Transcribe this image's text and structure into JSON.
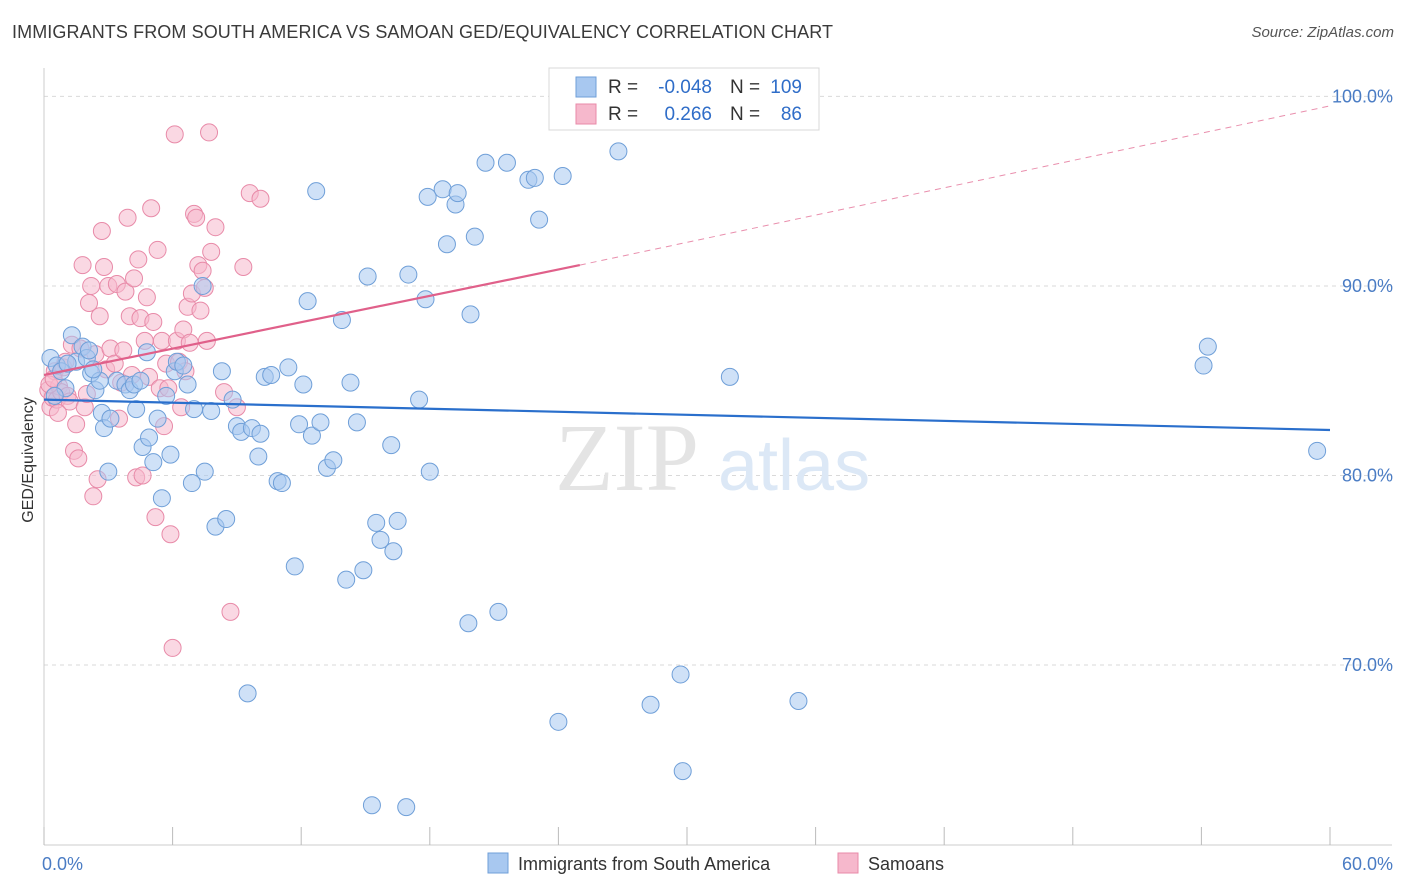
{
  "title": "IMMIGRANTS FROM SOUTH AMERICA VS SAMOAN GED/EQUIVALENCY CORRELATION CHART",
  "source": "Source: ZipAtlas.com",
  "watermark": {
    "zip": "ZIP",
    "atlas": "atlas"
  },
  "colors": {
    "blue_fill": "#a8c8f0",
    "blue_stroke": "#6f9fd8",
    "blue_line": "#2a6fcc",
    "pink_fill": "#f6b8cc",
    "pink_stroke": "#e88aa8",
    "pink_line": "#e0608a",
    "grid": "#d9d9d9",
    "tick_text": "#4a7cc4"
  },
  "legend": {
    "rows": [
      {
        "r_label": "R =",
        "r_value": "-0.048",
        "n_label": "N =",
        "n_value": "109"
      },
      {
        "r_label": "R =",
        "r_value": "0.266",
        "n_label": "N =",
        "n_value": "86"
      }
    ]
  },
  "bottom_legend": [
    "Immigrants from South America",
    "Samoans"
  ],
  "chart_data": {
    "type": "scatter",
    "ylabel": "GED/Equivalency",
    "xlim": [
      0,
      60
    ],
    "ylim": [
      60.5,
      101.5
    ],
    "x_tick_labels": [
      "0.0%",
      "60.0%"
    ],
    "y_ticks": [
      70,
      80,
      90,
      100
    ],
    "y_tick_labels": [
      "70.0%",
      "80.0%",
      "90.0%",
      "100.0%"
    ],
    "grid": true,
    "legend_position": "top-center",
    "series": [
      {
        "name": "Immigrants from South America",
        "trend": {
          "x0": 0,
          "y0": 84.0,
          "x1": 60,
          "y1": 82.4
        },
        "points": [
          [
            0.3,
            86.2
          ],
          [
            0.6,
            85.8
          ],
          [
            0.8,
            85.5
          ],
          [
            1.0,
            84.6
          ],
          [
            1.3,
            87.4
          ],
          [
            1.5,
            86.0
          ],
          [
            1.8,
            86.8
          ],
          [
            2.0,
            86.2
          ],
          [
            2.2,
            85.4
          ],
          [
            2.4,
            84.5
          ],
          [
            2.6,
            85.0
          ],
          [
            2.7,
            83.3
          ],
          [
            2.8,
            82.5
          ],
          [
            3.0,
            80.2
          ],
          [
            3.1,
            83.0
          ],
          [
            3.4,
            85.0
          ],
          [
            3.8,
            84.8
          ],
          [
            4.0,
            84.5
          ],
          [
            4.2,
            84.8
          ],
          [
            4.3,
            83.5
          ],
          [
            4.5,
            85.0
          ],
          [
            4.6,
            81.5
          ],
          [
            4.8,
            86.5
          ],
          [
            4.9,
            82.0
          ],
          [
            5.1,
            80.7
          ],
          [
            5.3,
            83.0
          ],
          [
            5.5,
            78.8
          ],
          [
            5.7,
            84.2
          ],
          [
            5.9,
            81.1
          ],
          [
            6.1,
            85.5
          ],
          [
            6.2,
            86.0
          ],
          [
            6.5,
            85.8
          ],
          [
            6.7,
            84.8
          ],
          [
            6.9,
            79.6
          ],
          [
            7.0,
            83.5
          ],
          [
            7.4,
            90.0
          ],
          [
            7.5,
            80.2
          ],
          [
            7.8,
            83.4
          ],
          [
            8.0,
            77.3
          ],
          [
            8.3,
            85.5
          ],
          [
            8.5,
            77.7
          ],
          [
            8.8,
            84.0
          ],
          [
            9.0,
            82.6
          ],
          [
            9.2,
            82.3
          ],
          [
            9.5,
            68.5
          ],
          [
            9.7,
            82.5
          ],
          [
            10.0,
            81.0
          ],
          [
            10.1,
            82.2
          ],
          [
            10.3,
            85.2
          ],
          [
            10.6,
            85.3
          ],
          [
            10.9,
            79.7
          ],
          [
            11.1,
            79.6
          ],
          [
            11.4,
            85.7
          ],
          [
            11.7,
            75.2
          ],
          [
            11.9,
            82.7
          ],
          [
            12.1,
            84.8
          ],
          [
            12.3,
            89.2
          ],
          [
            12.5,
            82.1
          ],
          [
            12.7,
            95.0
          ],
          [
            12.9,
            82.8
          ],
          [
            13.2,
            80.4
          ],
          [
            13.5,
            80.8
          ],
          [
            13.9,
            88.2
          ],
          [
            14.1,
            74.5
          ],
          [
            14.3,
            84.9
          ],
          [
            14.6,
            82.8
          ],
          [
            14.9,
            75.0
          ],
          [
            15.1,
            90.5
          ],
          [
            15.3,
            62.6
          ],
          [
            15.5,
            77.5
          ],
          [
            15.7,
            76.6
          ],
          [
            16.2,
            81.6
          ],
          [
            16.3,
            76.0
          ],
          [
            16.5,
            77.6
          ],
          [
            16.9,
            62.5
          ],
          [
            17.0,
            90.6
          ],
          [
            17.5,
            84.0
          ],
          [
            17.8,
            89.3
          ],
          [
            17.9,
            94.7
          ],
          [
            18.0,
            80.2
          ],
          [
            18.6,
            95.1
          ],
          [
            18.8,
            92.2
          ],
          [
            19.2,
            94.3
          ],
          [
            19.3,
            94.9
          ],
          [
            19.8,
            72.2
          ],
          [
            19.9,
            88.5
          ],
          [
            20.1,
            92.6
          ],
          [
            20.6,
            96.5
          ],
          [
            21.2,
            72.8
          ],
          [
            21.6,
            96.5
          ],
          [
            22.6,
            95.6
          ],
          [
            22.9,
            95.7
          ],
          [
            23.1,
            93.5
          ],
          [
            24.0,
            67.0
          ],
          [
            24.2,
            95.8
          ],
          [
            25.6,
            100.0
          ],
          [
            26.8,
            97.1
          ],
          [
            28.3,
            67.9
          ],
          [
            29.7,
            69.5
          ],
          [
            29.8,
            64.4
          ],
          [
            32.0,
            85.2
          ],
          [
            35.2,
            68.1
          ],
          [
            54.3,
            86.8
          ],
          [
            54.1,
            85.8
          ],
          [
            59.4,
            81.3
          ],
          [
            0.5,
            84.2
          ],
          [
            1.1,
            85.9
          ],
          [
            2.1,
            86.6
          ],
          [
            2.3,
            85.6
          ]
        ]
      },
      {
        "name": "Samoans",
        "trend": {
          "x0": 0,
          "y0": 85.3,
          "x1": 25,
          "y1": 91.1,
          "x2": 60,
          "y2": 99.5
        },
        "points": [
          [
            0.2,
            84.5
          ],
          [
            0.3,
            83.6
          ],
          [
            0.4,
            84.1
          ],
          [
            0.5,
            85.5
          ],
          [
            0.6,
            84.0
          ],
          [
            0.7,
            84.7
          ],
          [
            0.8,
            84.4
          ],
          [
            0.9,
            85.7
          ],
          [
            1.0,
            86.0
          ],
          [
            1.1,
            84.2
          ],
          [
            1.2,
            83.9
          ],
          [
            1.3,
            86.9
          ],
          [
            1.4,
            81.3
          ],
          [
            1.5,
            82.7
          ],
          [
            1.6,
            80.9
          ],
          [
            1.7,
            86.7
          ],
          [
            1.8,
            91.1
          ],
          [
            1.9,
            83.6
          ],
          [
            2.0,
            84.3
          ],
          [
            2.1,
            89.1
          ],
          [
            2.2,
            90.0
          ],
          [
            2.3,
            78.9
          ],
          [
            2.4,
            86.4
          ],
          [
            2.5,
            79.8
          ],
          [
            2.6,
            88.4
          ],
          [
            2.7,
            92.9
          ],
          [
            2.8,
            91.0
          ],
          [
            2.9,
            85.6
          ],
          [
            3.0,
            90.0
          ],
          [
            3.1,
            86.7
          ],
          [
            3.3,
            85.9
          ],
          [
            3.4,
            90.1
          ],
          [
            3.5,
            83.0
          ],
          [
            3.6,
            84.9
          ],
          [
            3.7,
            86.6
          ],
          [
            3.8,
            89.7
          ],
          [
            3.9,
            93.6
          ],
          [
            4.0,
            88.4
          ],
          [
            4.1,
            85.3
          ],
          [
            4.2,
            90.4
          ],
          [
            4.3,
            79.9
          ],
          [
            4.4,
            91.4
          ],
          [
            4.5,
            88.3
          ],
          [
            4.6,
            80.0
          ],
          [
            4.7,
            87.1
          ],
          [
            4.8,
            89.4
          ],
          [
            4.9,
            85.2
          ],
          [
            5.0,
            94.1
          ],
          [
            5.1,
            88.1
          ],
          [
            5.2,
            77.8
          ],
          [
            5.3,
            91.9
          ],
          [
            5.4,
            84.6
          ],
          [
            5.5,
            87.1
          ],
          [
            5.6,
            82.6
          ],
          [
            5.7,
            85.9
          ],
          [
            5.8,
            84.6
          ],
          [
            5.9,
            76.9
          ],
          [
            6.0,
            70.9
          ],
          [
            6.1,
            98.0
          ],
          [
            6.2,
            87.1
          ],
          [
            6.3,
            86.0
          ],
          [
            6.4,
            83.6
          ],
          [
            6.5,
            87.7
          ],
          [
            6.6,
            85.5
          ],
          [
            6.7,
            88.9
          ],
          [
            6.8,
            87.0
          ],
          [
            6.9,
            89.6
          ],
          [
            7.0,
            93.8
          ],
          [
            7.1,
            93.6
          ],
          [
            7.2,
            91.1
          ],
          [
            7.3,
            88.7
          ],
          [
            7.4,
            90.8
          ],
          [
            7.5,
            89.9
          ],
          [
            7.6,
            87.1
          ],
          [
            7.7,
            98.1
          ],
          [
            7.8,
            91.8
          ],
          [
            8.0,
            93.1
          ],
          [
            8.4,
            84.4
          ],
          [
            8.7,
            72.8
          ],
          [
            9.0,
            83.6
          ],
          [
            9.3,
            91.0
          ],
          [
            9.6,
            94.9
          ],
          [
            10.1,
            94.6
          ],
          [
            0.25,
            84.8
          ],
          [
            0.45,
            85.1
          ],
          [
            0.65,
            83.3
          ]
        ]
      }
    ]
  }
}
